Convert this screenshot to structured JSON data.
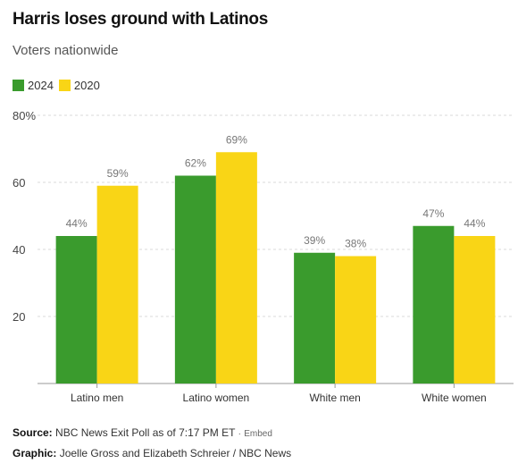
{
  "title": "Harris loses ground with Latinos",
  "subtitle": "Voters nationwide",
  "colors": {
    "series_2024": "#3a9b2d",
    "series_2020": "#f9d516",
    "grid": "#d9d9d9",
    "axis": "#999999",
    "label": "#777777"
  },
  "chart_data": {
    "type": "bar",
    "categories": [
      "Latino men",
      "Latino women",
      "White men",
      "White women"
    ],
    "series": [
      {
        "name": "2024",
        "values": [
          44,
          62,
          39,
          47
        ]
      },
      {
        "name": "2020",
        "values": [
          59,
          69,
          38,
          44
        ]
      }
    ],
    "value_labels": [
      [
        "44%",
        "62%",
        "39%",
        "47%"
      ],
      [
        "59%",
        "69%",
        "38%",
        "44%"
      ]
    ],
    "ylim": [
      0,
      80
    ],
    "yticks": [
      20,
      40,
      60,
      80
    ],
    "ytick_labels": [
      "20",
      "40",
      "60",
      "80%"
    ],
    "grid": true,
    "legend_position": "top-left"
  },
  "footer": {
    "source_label": "Source:",
    "source_text": "NBC News Exit Poll as of 7:17 PM ET",
    "embed_text": "Embed",
    "graphic_label": "Graphic:",
    "graphic_text": "Joelle Gross and Elizabeth Schreier / NBC News"
  }
}
